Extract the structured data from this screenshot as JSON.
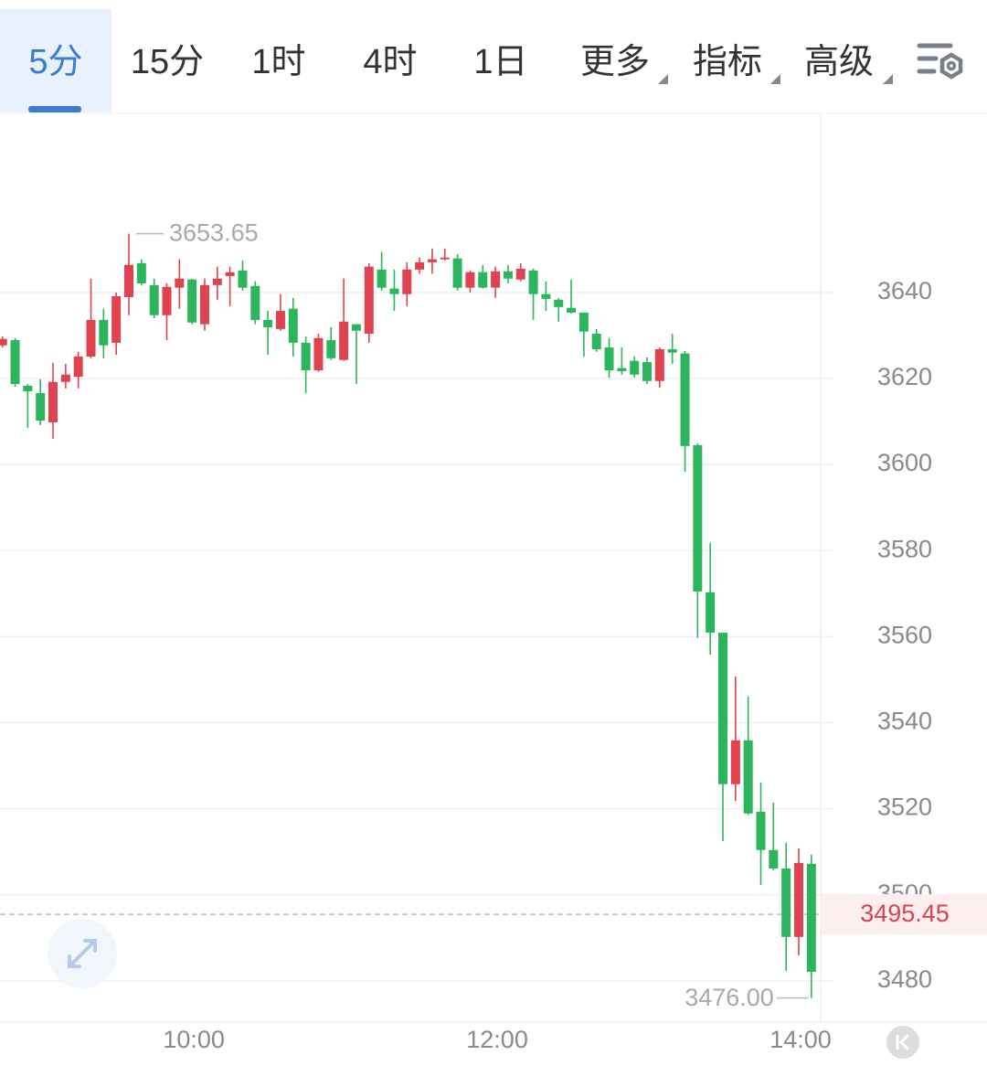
{
  "tabs": [
    "5分",
    "15分",
    "1时",
    "4时",
    "1日",
    "更多",
    "指标",
    "高级"
  ],
  "chart_data": {
    "type": "candlestick",
    "categories": [
      null,
      null,
      null,
      null,
      null,
      null,
      null,
      null,
      null,
      null,
      null,
      null,
      null,
      null,
      null,
      "10:00",
      null,
      null,
      null,
      null,
      null,
      null,
      null,
      null,
      null,
      null,
      null,
      null,
      null,
      null,
      null,
      null,
      null,
      null,
      null,
      null,
      null,
      null,
      null,
      "12:00",
      null,
      null,
      null,
      null,
      null,
      null,
      null,
      null,
      null,
      null,
      null,
      null,
      null,
      null,
      null,
      null,
      null,
      null,
      null,
      null,
      null,
      null,
      null,
      "14:00",
      null
    ],
    "open": [
      3627.7,
      3628.9,
      3618.3,
      3616.6,
      3609.8,
      3619.2,
      3620.4,
      3625.1,
      3633.6,
      3628.3,
      3638.9,
      3646.8,
      3641.7,
      3634.7,
      3641.1,
      3643.0,
      3632.6,
      3641.7,
      3643.8,
      3645.1,
      3641.5,
      3633.6,
      3631.5,
      3636.2,
      3628.3,
      3621.9,
      3628.9,
      3624.3,
      3632.6,
      3630.4,
      3645.3,
      3640.9,
      3639.6,
      3645.3,
      3647.0,
      3647.7,
      3647.9,
      3641.1,
      3644.7,
      3641.1,
      3644.9,
      3643.0,
      3645.1,
      3639.6,
      3638.3,
      3636.4,
      3635.3,
      3630.4,
      3627.2,
      3622.4,
      3624.1,
      3623.8,
      3619.4,
      3626.8,
      3625.8,
      3604.5,
      3570.3,
      3560.9,
      3525.7,
      3535.9,
      3519.3,
      3510.4,
      3506.1,
      3490.2,
      3507.2
    ],
    "high": [
      3629.8,
      3629.4,
      3618.7,
      3619.8,
      3623.6,
      3623.4,
      3626.2,
      3643.2,
      3636.2,
      3640.0,
      3653.65,
      3647.7,
      3643.2,
      3642.1,
      3647.7,
      3643.2,
      3643.2,
      3646.0,
      3646.0,
      3647.4,
      3642.6,
      3635.7,
      3639.6,
      3638.7,
      3629.8,
      3630.4,
      3631.9,
      3643.2,
      3632.6,
      3646.8,
      3649.4,
      3645.3,
      3647.0,
      3648.1,
      3650.2,
      3650.2,
      3648.9,
      3645.1,
      3646.4,
      3646.0,
      3646.4,
      3646.8,
      3645.5,
      3642.6,
      3638.7,
      3643.0,
      3635.3,
      3631.5,
      3629.4,
      3627.2,
      3625.1,
      3624.9,
      3627.2,
      3630.4,
      3626.4,
      3604.9,
      3581.8,
      3560.9,
      3550.7,
      3546.1,
      3526.1,
      3521.4,
      3512.1,
      3510.8,
      3509.3
    ],
    "low": [
      3627.2,
      3618.1,
      3608.5,
      3609.2,
      3606.0,
      3617.7,
      3617.7,
      3624.7,
      3624.7,
      3625.5,
      3634.7,
      3641.7,
      3634.0,
      3628.9,
      3636.2,
      3632.6,
      3631.1,
      3638.3,
      3636.8,
      3640.4,
      3632.6,
      3625.5,
      3631.1,
      3625.1,
      3616.6,
      3621.5,
      3624.3,
      3624.1,
      3618.7,
      3628.3,
      3640.4,
      3635.7,
      3636.8,
      3644.3,
      3644.3,
      3647.4,
      3640.4,
      3640.0,
      3640.9,
      3638.7,
      3642.1,
      3642.6,
      3633.6,
      3635.7,
      3633.2,
      3635.1,
      3625.1,
      3626.2,
      3620.2,
      3620.9,
      3620.2,
      3618.7,
      3617.9,
      3623.4,
      3598.3,
      3559.7,
      3555.8,
      3512.5,
      3521.8,
      3518.5,
      3502.3,
      3505.7,
      3482.3,
      3485.9,
      3476
    ],
    "close": [
      3629.2,
      3618.7,
      3617.0,
      3610.2,
      3619.2,
      3620.9,
      3625.1,
      3633.6,
      3627.7,
      3639.1,
      3646.4,
      3642.1,
      3634.7,
      3641.3,
      3643.2,
      3633.0,
      3641.7,
      3643.2,
      3644.7,
      3641.1,
      3633.6,
      3631.9,
      3635.7,
      3628.3,
      3621.9,
      3629.4,
      3624.7,
      3633.2,
      3631.1,
      3646.0,
      3641.1,
      3639.6,
      3645.3,
      3647.0,
      3647.7,
      3648.1,
      3641.1,
      3644.7,
      3641.1,
      3644.9,
      3643.2,
      3645.5,
      3639.6,
      3638.5,
      3636.6,
      3635.3,
      3630.9,
      3626.8,
      3621.9,
      3621.7,
      3620.9,
      3619.4,
      3626.8,
      3626.0,
      3604.3,
      3570.5,
      3560.9,
      3525.7,
      3535.9,
      3518.9,
      3510.4,
      3506.1,
      3490.2,
      3507.4,
      3482.1
    ],
    "up_color": "#e0434f",
    "down_color": "#2db55d",
    "ylim": [
      3470.4,
      3681.4
    ],
    "yticks": [
      3480,
      3500,
      3520,
      3540,
      3560,
      3580,
      3600,
      3620,
      3640
    ],
    "grid": true,
    "annotations": {
      "high": 3653.65,
      "low": {
        "value": 3476,
        "label": "3476.00"
      },
      "last": 3495.45
    }
  }
}
